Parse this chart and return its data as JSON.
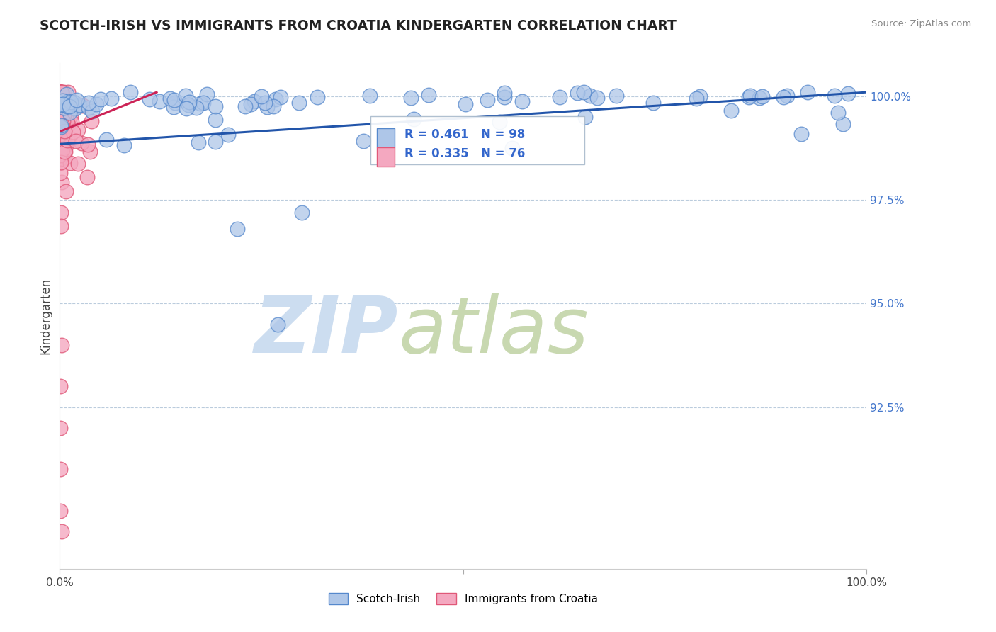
{
  "title": "SCOTCH-IRISH VS IMMIGRANTS FROM CROATIA KINDERGARTEN CORRELATION CHART",
  "source": "Source: ZipAtlas.com",
  "ylabel": "Kindergarten",
  "blue_R": 0.461,
  "blue_N": 98,
  "pink_R": 0.335,
  "pink_N": 76,
  "blue_color": "#aec6e8",
  "pink_color": "#f4a8c0",
  "blue_edge": "#5588cc",
  "pink_edge": "#e05878",
  "trend_blue": "#2255aa",
  "trend_pink": "#cc2255",
  "legend_label_blue": "Scotch-Irish",
  "legend_label_pink": "Immigrants from Croatia",
  "xlim": [
    0.0,
    1.0
  ],
  "ylim": [
    0.886,
    1.008
  ],
  "yticks": [
    0.925,
    0.95,
    0.975,
    1.0
  ],
  "ytick_labels": [
    "92.5%",
    "95.0%",
    "97.5%",
    "100.0%"
  ],
  "grid_color": "#bbccdd",
  "watermark_zip_color": "#ccddf0",
  "watermark_atlas_color": "#c8d8b0",
  "blue_trend_x0": 0.0,
  "blue_trend_y0": 0.9885,
  "blue_trend_x1": 1.0,
  "blue_trend_y1": 1.001,
  "pink_trend_x0": 0.0,
  "pink_trend_y0": 0.9915,
  "pink_trend_x1": 0.12,
  "pink_trend_y1": 1.001
}
